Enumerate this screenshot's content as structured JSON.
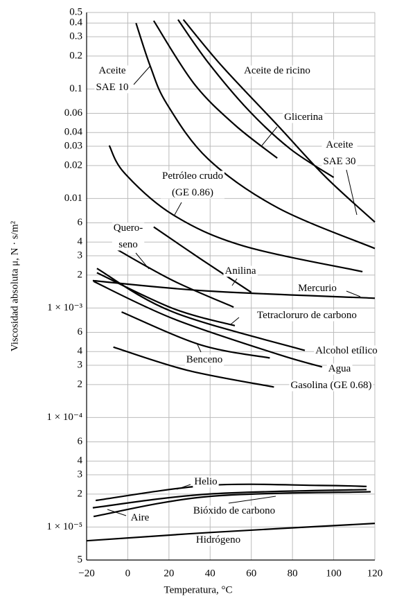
{
  "chart_data": {
    "type": "line",
    "xlabel": "Temperatura, °C",
    "ylabel": "Viscosidad absoluta μ, N · s/m²",
    "log_y": true,
    "grid": true,
    "color": "#000000",
    "xlim": [
      -20,
      120
    ],
    "xticks": [
      {
        "value": -20,
        "label": "−20"
      },
      0,
      20,
      40,
      60,
      80,
      100,
      120
    ],
    "ylim": [
      5e-06,
      0.5
    ],
    "yticks": [
      0.5,
      0.4,
      0.3,
      0.2,
      0.1,
      0.06,
      0.04,
      0.03,
      0.02,
      0.01,
      {
        "value": 0.006,
        "label": "6"
      },
      {
        "value": 0.004,
        "label": "4"
      },
      {
        "value": 0.003,
        "label": "3"
      },
      {
        "value": 0.002,
        "label": "2"
      },
      {
        "value": 0.001,
        "label": "1 × 10⁻³"
      },
      {
        "value": 0.0006,
        "label": "6"
      },
      {
        "value": 0.0004,
        "label": "4"
      },
      {
        "value": 0.0003,
        "label": "3"
      },
      {
        "value": 0.0002,
        "label": "2"
      },
      {
        "value": 0.0001,
        "label": "1 × 10⁻⁴"
      },
      {
        "value": 6e-05,
        "label": "6"
      },
      {
        "value": 4e-05,
        "label": "4"
      },
      {
        "value": 3e-05,
        "label": "3"
      },
      {
        "value": 2e-05,
        "label": "2"
      },
      {
        "value": 1e-05,
        "label": "1 × 10⁻⁵"
      },
      {
        "value": 5e-06,
        "label": "5"
      }
    ],
    "series": [
      {
        "name": "Aceite\nSAE 10",
        "x": [
          4,
          11,
          19,
          39,
          73,
          120
        ],
        "values": [
          0.4,
          0.16,
          0.073,
          0.023,
          0.0082,
          0.0035
        ]
      },
      {
        "name": "Glicerina",
        "x": [
          12.6,
          32,
          52,
          72.6
        ],
        "values": [
          0.42,
          0.113,
          0.047,
          0.0234
        ]
      },
      {
        "name": "Aceite de ricino",
        "x": [
          24.4,
          39,
          59,
          79,
          100
        ],
        "values": [
          0.43,
          0.175,
          0.063,
          0.0283,
          0.0156
        ]
      },
      {
        "name": "Aceite\nSAE 30",
        "x": [
          27,
          45.6,
          72.6,
          96,
          120
        ],
        "values": [
          0.43,
          0.163,
          0.047,
          0.0158,
          0.0061
        ]
      },
      {
        "name": "Petróleo crudo\n(GE 0.86)",
        "x": [
          -9,
          -1.5,
          22,
          56,
          114
        ],
        "values": [
          0.0305,
          0.017,
          0.0071,
          0.0037,
          0.00215
        ]
      },
      {
        "name": "Quero-\nseno",
        "x": [
          -5,
          22,
          51.4
        ],
        "values": [
          0.0034,
          0.00178,
          0.00102
        ]
      },
      {
        "name": "Anilina",
        "x": [
          12.6,
          35.5,
          60
        ],
        "values": [
          0.0055,
          0.0028,
          0.00139
        ]
      },
      {
        "name": "Mercurio",
        "x": [
          -17,
          39,
          120
        ],
        "values": [
          0.00178,
          0.00143,
          0.00123
        ]
      },
      {
        "name": "Tetracloruro de carbono",
        "x": [
          -15,
          22,
          52
        ],
        "values": [
          0.0021,
          0.00099,
          0.00069
        ]
      },
      {
        "name": "Alcohol etílico",
        "x": [
          -15,
          22,
          86
        ],
        "values": [
          0.0023,
          0.00092,
          0.00041
        ]
      },
      {
        "name": "Agua",
        "x": [
          -16.6,
          22,
          72.6,
          94.4
        ],
        "values": [
          0.00175,
          0.0008,
          0.00038,
          0.00029
        ]
      },
      {
        "name": "Benceno",
        "x": [
          -3,
          35.5,
          69
        ],
        "values": [
          0.00092,
          0.00046,
          0.00035
        ]
      },
      {
        "name": "Gasolina (GE 0.68)",
        "x": [
          -7,
          29,
          71
        ],
        "values": [
          0.00044,
          0.00027,
          0.00019
        ]
      },
      {
        "name": "Helio",
        "x": [
          -15.6,
          39,
          93,
          116
        ],
        "values": [
          1.75e-05,
          2.4e-05,
          2.4e-05,
          2.35e-05
        ]
      },
      {
        "name": "Aire",
        "x": [
          -17,
          39,
          116
        ],
        "values": [
          1.5e-05,
          2e-05,
          2.2e-05
        ]
      },
      {
        "name": "Bióxido de carbono",
        "x": [
          -16.6,
          39,
          118
        ],
        "values": [
          1.25e-05,
          1.9e-05,
          2.1e-05
        ]
      },
      {
        "name": "Hidrógeno",
        "x": [
          -20,
          39,
          120
        ],
        "values": [
          7.5e-06,
          8.9e-06,
          1.08e-05
        ]
      }
    ]
  }
}
